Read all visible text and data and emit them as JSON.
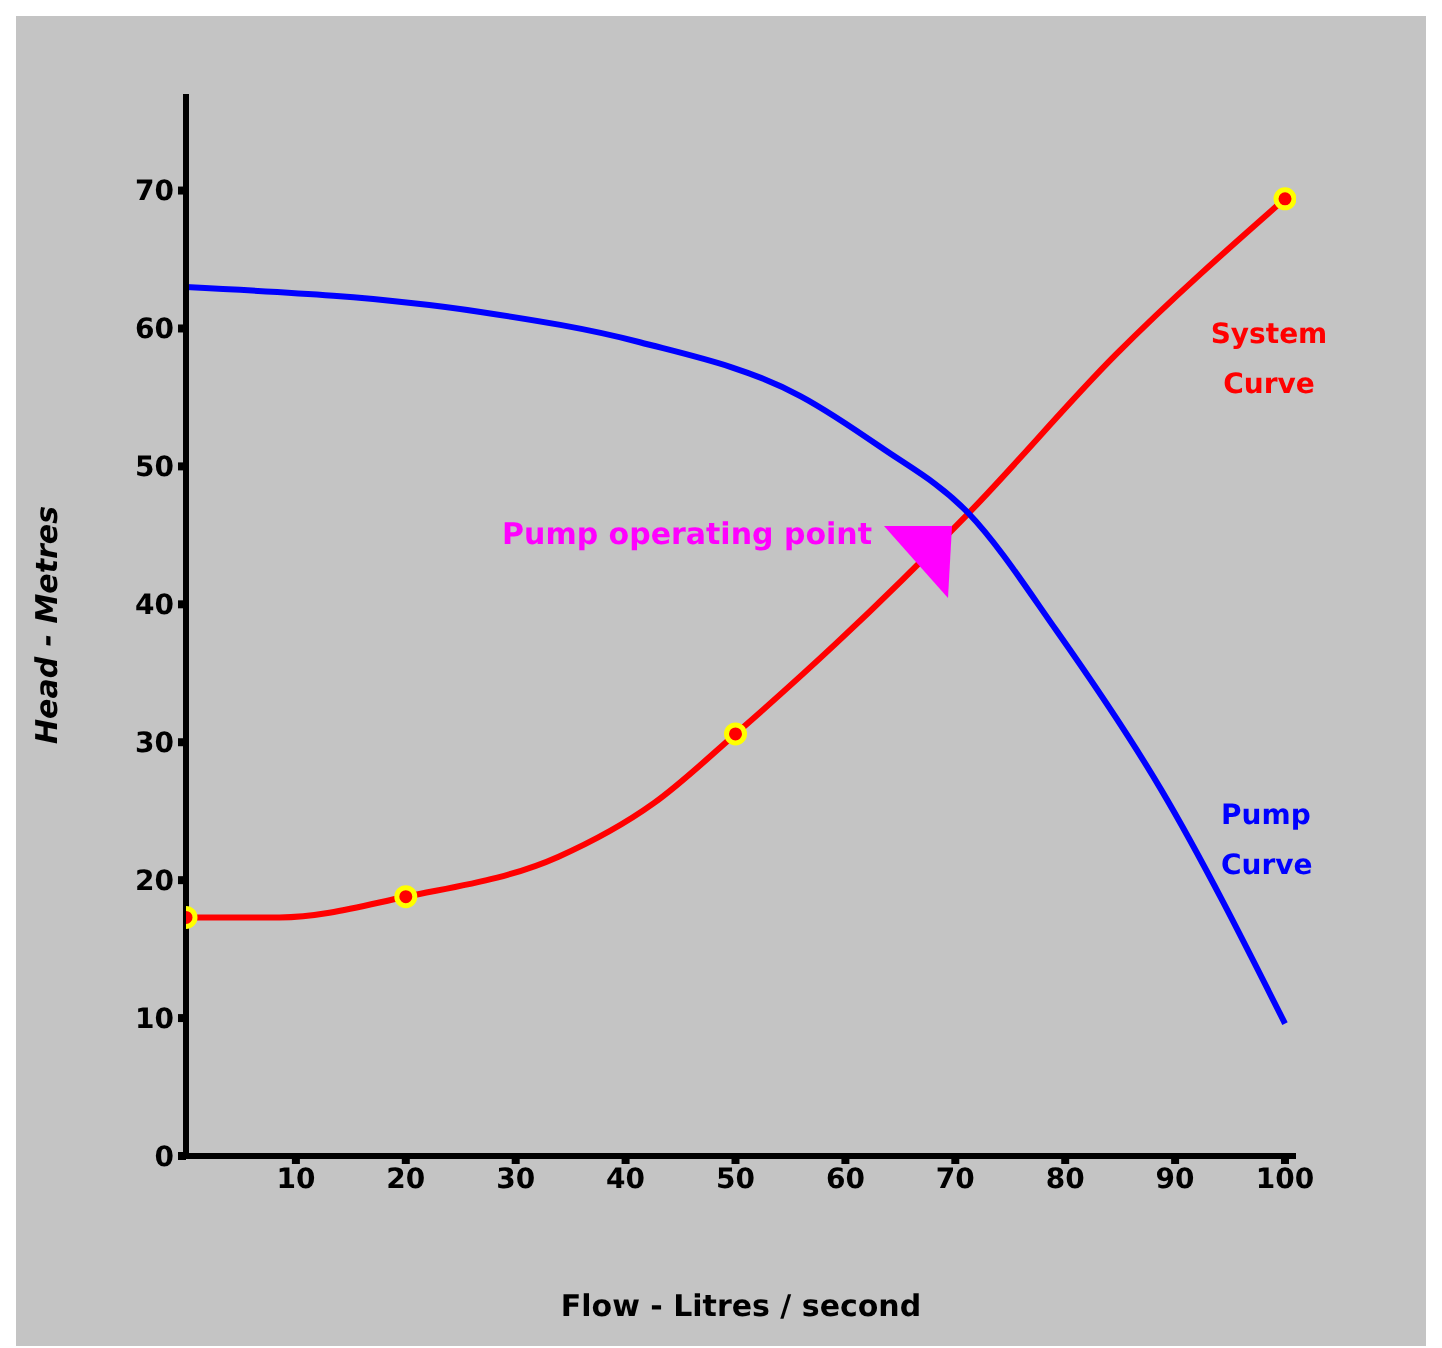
{
  "chart_data": {
    "type": "line",
    "xlabel": "Flow - Litres / second",
    "ylabel": "Head - Metres",
    "xlim": [
      0,
      101
    ],
    "ylim": [
      0,
      77
    ],
    "xticks": [
      10,
      20,
      30,
      40,
      50,
      60,
      70,
      80,
      90,
      100
    ],
    "yticks": [
      0,
      10,
      20,
      30,
      40,
      50,
      60,
      70
    ],
    "grid": false,
    "legend": false,
    "marker": "none",
    "line_style": "solid",
    "series": [
      {
        "name": "System Curve",
        "color": "#ff0000",
        "x": [
          0,
          8.5,
          20,
          33.9,
          42.6,
          50,
          59.2,
          71.2,
          84.6,
          100
        ],
        "values": [
          17.3,
          17.3,
          18.8,
          21.7,
          25.6,
          30.6,
          37.2,
          46.6,
          58.1,
          69.4
        ]
      },
      {
        "name": "Pump Curve",
        "color": "#0000ff",
        "x": [
          0,
          26.8,
          41.3,
          55.9,
          63.2,
          71.2,
          79.2,
          88.7,
          100
        ],
        "values": [
          63,
          61.2,
          59,
          55.1,
          51.4,
          46.6,
          38.1,
          26.6,
          9.6
        ]
      },
      {
        "type": "scatter",
        "color": "#ff0000",
        "marker": "circle",
        "x": [
          0,
          20,
          50,
          100
        ],
        "values": [
          17.3,
          18.8,
          30.6,
          69.4
        ]
      }
    ],
    "annotations": [
      "Pump operating point"
    ]
  }
}
